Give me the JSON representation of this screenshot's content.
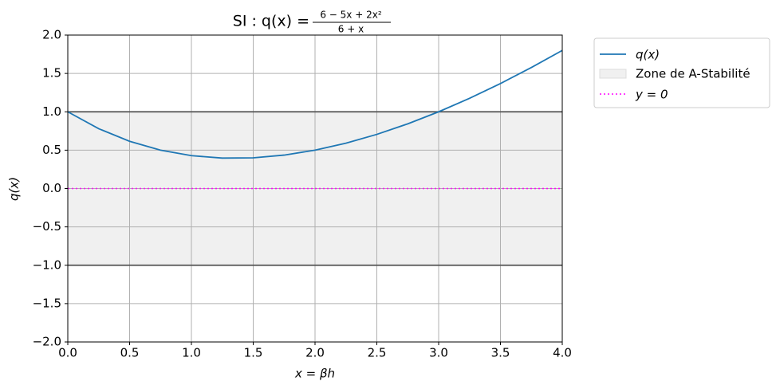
{
  "chart_data": {
    "type": "line",
    "title": "SI : q(x) =",
    "title_numerator": "6 − 5x + 2x²",
    "title_denominator": "6 + x",
    "xlabel": "x = βh",
    "ylabel": "q(x)",
    "x": [
      0,
      0.25,
      0.5,
      0.75,
      1,
      1.25,
      1.5,
      1.75,
      2,
      2.25,
      2.5,
      2.75,
      3,
      3.25,
      3.5,
      3.75,
      4
    ],
    "series": [
      {
        "name": "q(x)",
        "color": "#1f77b4",
        "values": [
          1,
          0.78,
          0.6154,
          0.5,
          0.4286,
          0.3966,
          0.4,
          0.4355,
          0.5,
          0.5909,
          0.7059,
          0.8429,
          1,
          1.1757,
          1.3684,
          1.5769,
          1.8
        ]
      }
    ],
    "zone": {
      "name": "Zone de A-Stabilité",
      "range": [
        -1,
        1
      ],
      "color": "#f0f0f0",
      "edge_color": "#555555"
    },
    "hline": {
      "name": "y = 0",
      "value": 0,
      "color": "#ff00ff"
    },
    "xlim": [
      0,
      4
    ],
    "ylim": [
      -2,
      2
    ],
    "xticks": [
      {
        "value": 0,
        "label": "0.0"
      },
      {
        "value": 0.5,
        "label": "0.5"
      },
      {
        "value": 1,
        "label": "1.0"
      },
      {
        "value": 1.5,
        "label": "1.5"
      },
      {
        "value": 2,
        "label": "2.0"
      },
      {
        "value": 2.5,
        "label": "2.5"
      },
      {
        "value": 3,
        "label": "3.0"
      },
      {
        "value": 3.5,
        "label": "3.5"
      },
      {
        "value": 4,
        "label": "4.0"
      }
    ],
    "yticks": [
      {
        "value": -2,
        "label": "−2.0"
      },
      {
        "value": -1.5,
        "label": "−1.5"
      },
      {
        "value": -1,
        "label": "−1.0"
      },
      {
        "value": -0.5,
        "label": "−0.5"
      },
      {
        "value": 0,
        "label": "0.0"
      },
      {
        "value": 0.5,
        "label": "0.5"
      },
      {
        "value": 1,
        "label": "1.0"
      },
      {
        "value": 1.5,
        "label": "1.5"
      },
      {
        "value": 2,
        "label": "2.0"
      }
    ],
    "grid": true
  }
}
